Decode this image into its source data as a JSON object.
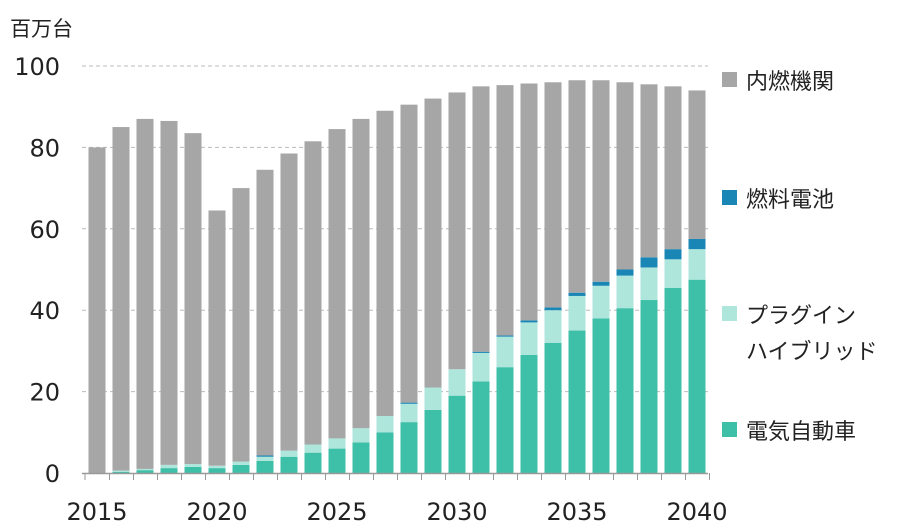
{
  "chart_data": {
    "type": "bar",
    "stacked": true,
    "title": "",
    "ylabel": "百万台",
    "xlabel": "",
    "ylim": [
      0,
      100
    ],
    "yticks": [
      0,
      20,
      40,
      60,
      80,
      100
    ],
    "xticks": [
      "2015",
      "2020",
      "2025",
      "2030",
      "2035",
      "2040"
    ],
    "grid": "horizontal dashed",
    "legend_position": "right",
    "categories": [
      2015,
      2016,
      2017,
      2018,
      2019,
      2020,
      2021,
      2022,
      2023,
      2024,
      2025,
      2026,
      2027,
      2028,
      2029,
      2030,
      2031,
      2032,
      2033,
      2034,
      2035,
      2036,
      2037,
      2038,
      2039,
      2040
    ],
    "series": [
      {
        "name": "電気自動車",
        "color": "#3dbfa8",
        "values": [
          0,
          0.3,
          0.7,
          1.2,
          1.5,
          1.2,
          2,
          3,
          4,
          5,
          6,
          7.5,
          10,
          12.5,
          15.5,
          19,
          22.5,
          26,
          29,
          32,
          35,
          38,
          40.5,
          42.5,
          45.5,
          47.5
        ]
      },
      {
        "name": "プラグインハイブリッド",
        "legend_lines": [
          "プラグイン",
          "ハイブリッド"
        ],
        "color": "#aee6dc",
        "values": [
          0,
          0.3,
          0.3,
          0.8,
          0.7,
          0.6,
          0.8,
          1,
          1.5,
          2,
          2.5,
          3.5,
          4,
          4.5,
          5.5,
          6.5,
          7,
          7.5,
          8,
          8,
          8.5,
          8,
          8,
          8,
          7,
          7.5
        ]
      },
      {
        "name": "燃料電池",
        "color": "#1a86b5",
        "values": [
          0,
          0,
          0,
          0,
          0,
          0,
          0,
          0.3,
          0,
          0,
          0,
          0,
          0,
          0.3,
          0,
          0,
          0.3,
          0.3,
          0.5,
          0.7,
          0.8,
          1,
          1.5,
          2.5,
          2.5,
          2.5
        ]
      },
      {
        "name": "内燃機関",
        "color": "#a6a6a6",
        "values": [
          80,
          84.4,
          86,
          84.5,
          81.3,
          62.7,
          67.2,
          70.2,
          73,
          74.5,
          76,
          76,
          75,
          73.2,
          71,
          68,
          65.2,
          61.5,
          58.2,
          55.3,
          52.2,
          49.5,
          46,
          42.5,
          40,
          36.5
        ]
      }
    ]
  }
}
